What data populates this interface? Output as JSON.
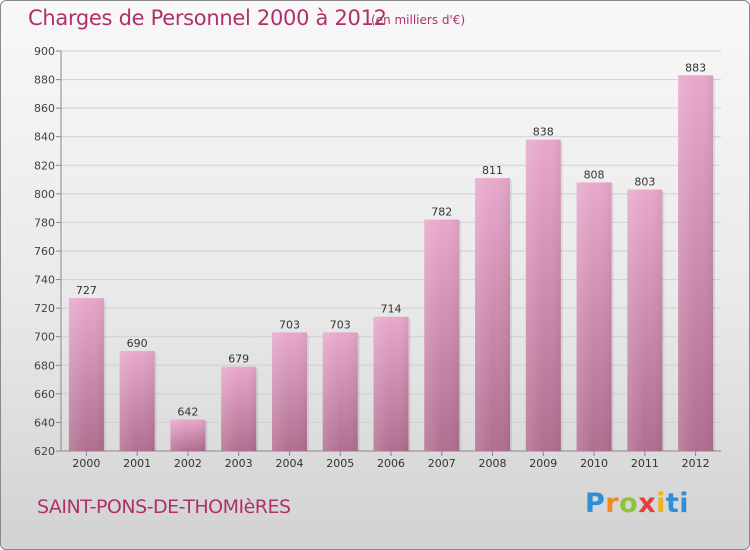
{
  "header": {
    "title": "Charges de Personnel 2000 à 2012",
    "subtitle": "(en milliers d'€)"
  },
  "footer": {
    "commune": "SAINT-PONS-DE-THOMIèRES",
    "logo_letters": [
      "P",
      "r",
      "o",
      "x",
      "i",
      "ti"
    ]
  },
  "colors": {
    "title": "#b0306c",
    "bar_top": "#e8a8cc",
    "bar_bottom": "#b06e90",
    "grid": "#d0d0d0"
  },
  "chart_data": {
    "type": "bar",
    "title": "Charges de Personnel 2000 à 2012",
    "categories": [
      "2000",
      "2001",
      "2002",
      "2003",
      "2004",
      "2005",
      "2006",
      "2007",
      "2008",
      "2009",
      "2010",
      "2011",
      "2012"
    ],
    "values": [
      727,
      690,
      642,
      679,
      703,
      703,
      714,
      782,
      811,
      838,
      808,
      803,
      883
    ],
    "ylim": [
      620,
      900
    ],
    "yticks": [
      620,
      640,
      660,
      680,
      700,
      720,
      740,
      760,
      780,
      800,
      820,
      840,
      860,
      880,
      900
    ],
    "grid": true,
    "data_labels": true
  }
}
